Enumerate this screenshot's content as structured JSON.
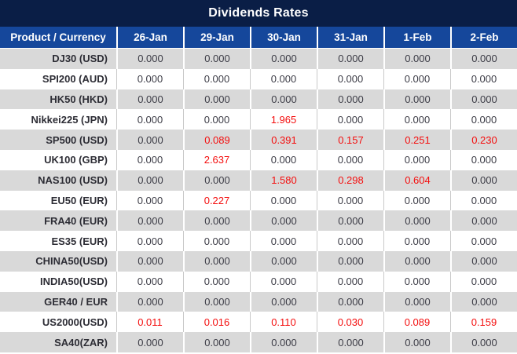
{
  "title": "Dividends Rates",
  "header": {
    "product_column": "Product / Currency",
    "date_columns": [
      "26-Jan",
      "29-Jan",
      "30-Jan",
      "31-Jan",
      "1-Feb",
      "2-Feb"
    ]
  },
  "chart_data": {
    "type": "table",
    "title": "Dividends Rates",
    "columns": [
      "Product / Currency",
      "26-Jan",
      "29-Jan",
      "30-Jan",
      "31-Jan",
      "1-Feb",
      "2-Feb"
    ],
    "rows": [
      {
        "product": "DJ30 (USD)",
        "values": [
          "0.000",
          "0.000",
          "0.000",
          "0.000",
          "0.000",
          "0.000"
        ],
        "red_flags": [
          false,
          false,
          false,
          false,
          false,
          false
        ]
      },
      {
        "product": "SPI200 (AUD)",
        "values": [
          "0.000",
          "0.000",
          "0.000",
          "0.000",
          "0.000",
          "0.000"
        ],
        "red_flags": [
          false,
          false,
          false,
          false,
          false,
          false
        ]
      },
      {
        "product": "HK50 (HKD)",
        "values": [
          "0.000",
          "0.000",
          "0.000",
          "0.000",
          "0.000",
          "0.000"
        ],
        "red_flags": [
          false,
          false,
          false,
          false,
          false,
          false
        ]
      },
      {
        "product": "Nikkei225 (JPN)",
        "values": [
          "0.000",
          "0.000",
          "1.965",
          "0.000",
          "0.000",
          "0.000"
        ],
        "red_flags": [
          false,
          false,
          true,
          false,
          false,
          false
        ]
      },
      {
        "product": "SP500 (USD)",
        "values": [
          "0.000",
          "0.089",
          "0.391",
          "0.157",
          "0.251",
          "0.230"
        ],
        "red_flags": [
          false,
          true,
          true,
          true,
          true,
          true
        ]
      },
      {
        "product": "UK100 (GBP)",
        "values": [
          "0.000",
          "2.637",
          "0.000",
          "0.000",
          "0.000",
          "0.000"
        ],
        "red_flags": [
          false,
          true,
          false,
          false,
          false,
          false
        ]
      },
      {
        "product": "NAS100 (USD)",
        "values": [
          "0.000",
          "0.000",
          "1.580",
          "0.298",
          "0.604",
          "0.000"
        ],
        "red_flags": [
          false,
          false,
          true,
          true,
          true,
          false
        ]
      },
      {
        "product": "EU50 (EUR)",
        "values": [
          "0.000",
          "0.227",
          "0.000",
          "0.000",
          "0.000",
          "0.000"
        ],
        "red_flags": [
          false,
          true,
          false,
          false,
          false,
          false
        ]
      },
      {
        "product": "FRA40 (EUR)",
        "values": [
          "0.000",
          "0.000",
          "0.000",
          "0.000",
          "0.000",
          "0.000"
        ],
        "red_flags": [
          false,
          false,
          false,
          false,
          false,
          false
        ]
      },
      {
        "product": "ES35 (EUR)",
        "values": [
          "0.000",
          "0.000",
          "0.000",
          "0.000",
          "0.000",
          "0.000"
        ],
        "red_flags": [
          false,
          false,
          false,
          false,
          false,
          false
        ]
      },
      {
        "product": "CHINA50(USD)",
        "values": [
          "0.000",
          "0.000",
          "0.000",
          "0.000",
          "0.000",
          "0.000"
        ],
        "red_flags": [
          false,
          false,
          false,
          false,
          false,
          false
        ]
      },
      {
        "product": "INDIA50(USD)",
        "values": [
          "0.000",
          "0.000",
          "0.000",
          "0.000",
          "0.000",
          "0.000"
        ],
        "red_flags": [
          false,
          false,
          false,
          false,
          false,
          false
        ]
      },
      {
        "product": "GER40 / EUR",
        "values": [
          "0.000",
          "0.000",
          "0.000",
          "0.000",
          "0.000",
          "0.000"
        ],
        "red_flags": [
          false,
          false,
          false,
          false,
          false,
          false
        ]
      },
      {
        "product": "US2000(USD)",
        "values": [
          "0.011",
          "0.016",
          "0.110",
          "0.030",
          "0.089",
          "0.159"
        ],
        "red_flags": [
          true,
          true,
          true,
          true,
          true,
          true
        ]
      },
      {
        "product": "SA40(ZAR)",
        "values": [
          "0.000",
          "0.000",
          "0.000",
          "0.000",
          "0.000",
          "0.000"
        ],
        "red_flags": [
          false,
          false,
          false,
          false,
          false,
          false
        ]
      }
    ]
  },
  "colors": {
    "title_bar_bg": "#0A1E46",
    "header_row_bg": "#15479B",
    "alt_row_bg": "#D9D9D9",
    "row_bg": "#FFFFFF",
    "highlight_value_red": "#F40E0E",
    "value_text": "#3C3C46",
    "header_text": "#FFFFFF"
  }
}
